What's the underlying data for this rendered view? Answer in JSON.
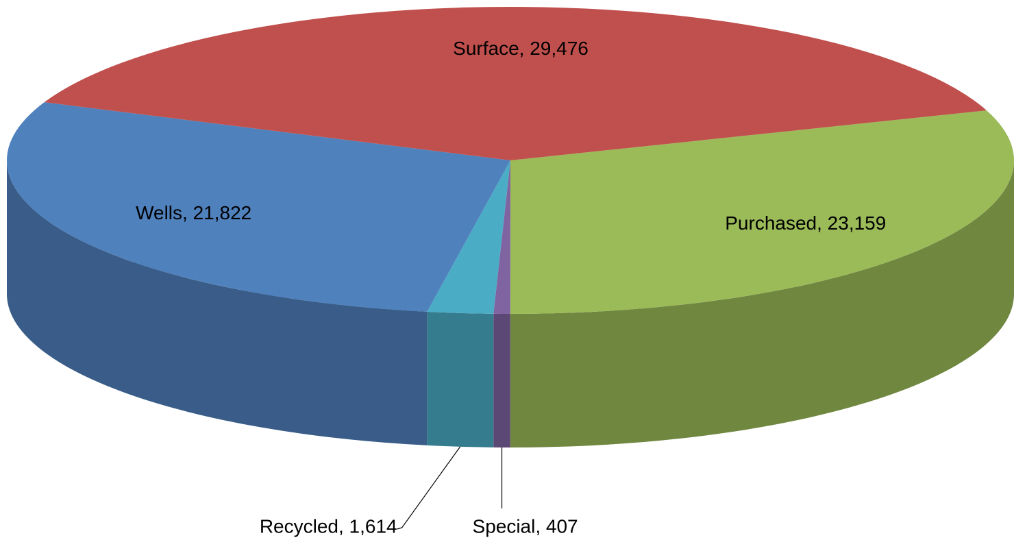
{
  "chart_data": {
    "type": "pie3d",
    "values": [
      23159,
      407,
      1614,
      21822,
      29476
    ],
    "value_labels": [
      "Purchased, 23,159",
      "Special, 407",
      "Recycled, 1,614",
      "Wells, 21,822",
      "Surface, 29,476"
    ],
    "colors": [
      "#9bbb59",
      "#8064a2",
      "#4bacc6",
      "#4f81bd",
      "#c0504d"
    ]
  }
}
